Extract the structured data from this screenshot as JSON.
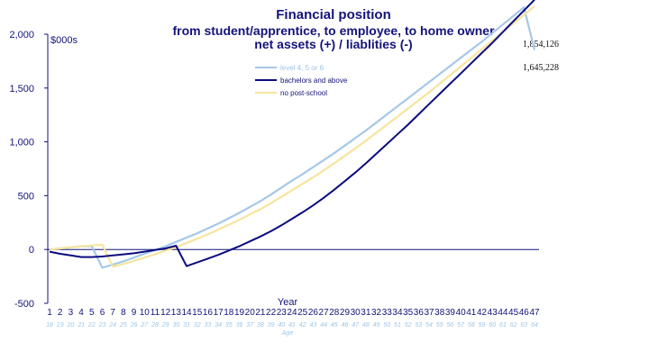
{
  "chart_data": {
    "type": "line",
    "title": "Financial position",
    "subtitle_lines": [
      "from student/apprentice, to employee, to home owner",
      "net assets (+) / liablities (-)"
    ],
    "ylabel": "$000s",
    "xlabel": "Year",
    "x2label": "Age",
    "ylim": [
      -500,
      2000
    ],
    "yticks": [
      "-500",
      "0",
      "500",
      "1,000",
      "1,500",
      "2,000"
    ],
    "ytick_values": [
      -500,
      0,
      500,
      1000,
      1500,
      2000
    ],
    "years": [
      1,
      2,
      3,
      4,
      5,
      6,
      7,
      8,
      9,
      10,
      11,
      12,
      13,
      14,
      15,
      16,
      17,
      18,
      19,
      20,
      21,
      22,
      23,
      24,
      25,
      26,
      27,
      28,
      29,
      30,
      31,
      32,
      33,
      34,
      35,
      36,
      37,
      38,
      39,
      40,
      41,
      42,
      43,
      44,
      45,
      46,
      47
    ],
    "year_labels": [
      "1",
      "2",
      "3",
      "4",
      "5",
      "6",
      "7",
      "8",
      "9",
      "10",
      "11",
      "12",
      "13",
      "14",
      "15",
      "16",
      "17",
      "18",
      "19",
      "20",
      "21",
      "22",
      "23",
      "24",
      "25",
      "26",
      "27",
      "28",
      "29",
      "30",
      "31",
      "32",
      "33",
      "34",
      "35",
      "36",
      "37",
      "38",
      "39",
      "40",
      "41",
      "42",
      "43",
      "44",
      "45",
      "46",
      "47"
    ],
    "age_labels": [
      "18",
      "19",
      "20",
      "21",
      "22",
      "23",
      "24",
      "25",
      "26",
      "27",
      "28",
      "29",
      "30",
      "31",
      "32",
      "33",
      "34",
      "35",
      "36",
      "37",
      "38",
      "39",
      "40",
      "41",
      "42",
      "43",
      "44",
      "45",
      "46",
      "47",
      "48",
      "49",
      "50",
      "51",
      "52",
      "53",
      "54",
      "55",
      "56",
      "57",
      "58",
      "59",
      "60",
      "61",
      "62",
      "63",
      "64"
    ],
    "series": [
      {
        "name": "level 4, 5 or 6",
        "color": "#a5c8e8",
        "values": [
          0,
          10,
          20,
          30,
          30,
          -170,
          -140,
          -110,
          -75,
          -40,
          -5,
          30,
          70,
          110,
          150,
          195,
          240,
          290,
          340,
          395,
          450,
          510,
          575,
          640,
          700,
          765,
          830,
          895,
          965,
          1035,
          1105,
          1180,
          1255,
          1330,
          1405,
          1480,
          1555,
          1630,
          1705,
          1780,
          1855,
          1930,
          2010,
          2090,
          2170,
          2250,
          1854
        ]
      },
      {
        "name": "bachelors and above",
        "color": "#0b0b80",
        "values": [
          -20,
          -40,
          -55,
          -70,
          -70,
          -65,
          -55,
          -45,
          -35,
          -20,
          -5,
          10,
          35,
          -155,
          -120,
          -85,
          -50,
          -10,
          30,
          75,
          120,
          170,
          225,
          285,
          345,
          410,
          480,
          555,
          635,
          715,
          800,
          890,
          980,
          1070,
          1160,
          1255,
          1350,
          1445,
          1540,
          1635,
          1730,
          1825,
          1920,
          2020,
          2120,
          2220,
          2320
        ]
      },
      {
        "name": "no post-school",
        "color": "#f7e49e",
        "values": [
          0,
          10,
          20,
          30,
          38,
          45,
          -160,
          -135,
          -105,
          -75,
          -45,
          -10,
          20,
          60,
          100,
          140,
          185,
          230,
          275,
          325,
          375,
          430,
          490,
          550,
          610,
          670,
          735,
          800,
          870,
          940,
          1010,
          1085,
          1160,
          1235,
          1310,
          1385,
          1460,
          1540,
          1620,
          1700,
          1780,
          1860,
          1940,
          2020,
          2100,
          2180,
          2260
        ]
      }
    ],
    "end_labels": [
      "1,854,126",
      "1,645,228"
    ],
    "legend_position": "upper-center",
    "grid": false
  }
}
